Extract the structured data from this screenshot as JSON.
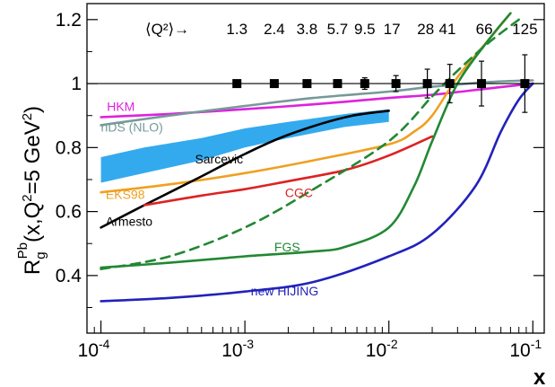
{
  "chart_data": {
    "type": "line",
    "title": "",
    "xlabel": "x",
    "ylabel_main": "R",
    "ylabel_sup": "Pb",
    "ylabel_sub": "g",
    "ylabel_rest": "(x,Q",
    "ylabel_q2sup": "2",
    "ylabel_tail": "=5 GeV",
    "ylabel_gevsup": "2",
    "ylabel_close": ")",
    "x_scale": "log",
    "xlim": [
      8e-05,
      0.12
    ],
    "ylim": [
      0.22,
      1.25
    ],
    "x_ticks": [
      {
        "value": 0.0001,
        "base": "10",
        "exp": "-4"
      },
      {
        "value": 0.001,
        "base": "10",
        "exp": "-3"
      },
      {
        "value": 0.01,
        "base": "10",
        "exp": "-2"
      },
      {
        "value": 0.1,
        "base": "10",
        "exp": "-1"
      }
    ],
    "y_ticks": [
      {
        "value": 0.4,
        "label": "0.4"
      },
      {
        "value": 0.6,
        "label": "0.6"
      },
      {
        "value": 0.8,
        "label": "0.8"
      },
      {
        "value": 1.0,
        "label": "1"
      },
      {
        "value": 1.2,
        "label": "1.2"
      }
    ],
    "reference_line": 1.0,
    "q2_header": {
      "label": "⟨Q²⟩→",
      "values": [
        {
          "x": 0.00088,
          "label": "1.3"
        },
        {
          "x": 0.0016,
          "label": "2.4"
        },
        {
          "x": 0.0027,
          "label": "3.8"
        },
        {
          "x": 0.0044,
          "label": "5.7"
        },
        {
          "x": 0.0068,
          "label": "9.5"
        },
        {
          "x": 0.0105,
          "label": "17"
        },
        {
          "x": 0.018,
          "label": "28"
        },
        {
          "x": 0.0255,
          "label": "41"
        },
        {
          "x": 0.046,
          "label": "66"
        },
        {
          "x": 0.088,
          "label": "125"
        }
      ]
    },
    "data_points": [
      {
        "x": 0.00088,
        "y": 1.0,
        "err": 0.0
      },
      {
        "x": 0.0016,
        "y": 1.0,
        "err": 0.0
      },
      {
        "x": 0.0027,
        "y": 1.0,
        "err": 0.0
      },
      {
        "x": 0.0044,
        "y": 1.0,
        "err": 0.012
      },
      {
        "x": 0.0068,
        "y": 1.0,
        "err": 0.018
      },
      {
        "x": 0.0112,
        "y": 1.0,
        "err": 0.025
      },
      {
        "x": 0.0185,
        "y": 1.0,
        "err": 0.045
      },
      {
        "x": 0.0265,
        "y": 1.0,
        "err": 0.06
      },
      {
        "x": 0.044,
        "y": 1.0,
        "err": 0.07
      },
      {
        "x": 0.088,
        "y": 1.0,
        "err": 0.09
      }
    ],
    "band": {
      "name": "Sarcevic",
      "color": "#33aaee",
      "x": [
        0.0001,
        0.0002,
        0.0005,
        0.001,
        0.002,
        0.005,
        0.01
      ],
      "upper": [
        0.77,
        0.8,
        0.83,
        0.86,
        0.88,
        0.905,
        0.92
      ],
      "lower": [
        0.69,
        0.72,
        0.76,
        0.8,
        0.83,
        0.865,
        0.88
      ]
    },
    "series": [
      {
        "name": "HKM",
        "color": "#dd22dd",
        "dash": false,
        "x": [
          0.0001,
          0.0003,
          0.001,
          0.003,
          0.01,
          0.02,
          0.05,
          0.1
        ],
        "y": [
          0.895,
          0.905,
          0.92,
          0.935,
          0.955,
          0.965,
          0.985,
          1.0
        ]
      },
      {
        "name": "nDS (NLO)",
        "color": "#779999",
        "dash": false,
        "x": [
          0.0001,
          0.0003,
          0.001,
          0.003,
          0.01,
          0.02,
          0.05,
          0.1
        ],
        "y": [
          0.87,
          0.9,
          0.93,
          0.955,
          0.975,
          0.99,
          1.005,
          1.01
        ]
      },
      {
        "name": "EKS98",
        "color": "#f0a020",
        "dash": false,
        "x": [
          0.0001,
          0.0003,
          0.001,
          0.003,
          0.01,
          0.015,
          0.02,
          0.03,
          0.05,
          0.07
        ],
        "y": [
          0.66,
          0.685,
          0.72,
          0.76,
          0.81,
          0.85,
          0.9,
          1.02,
          1.14,
          1.22
        ]
      },
      {
        "name": "Armesto",
        "color": "#000000",
        "dash": false,
        "x": [
          0.0001,
          0.0002,
          0.0005,
          0.001,
          0.002,
          0.005,
          0.01
        ],
        "y": [
          0.55,
          0.62,
          0.71,
          0.78,
          0.84,
          0.895,
          0.915
        ]
      },
      {
        "name": "CGC",
        "color": "#dd2222",
        "dash": false,
        "x": [
          0.0002,
          0.0005,
          0.001,
          0.002,
          0.005,
          0.01,
          0.02
        ],
        "y": [
          0.62,
          0.65,
          0.67,
          0.695,
          0.73,
          0.775,
          0.835
        ]
      },
      {
        "name": "FGS",
        "color": "#228833",
        "dash": false,
        "x": [
          0.0001,
          0.0003,
          0.001,
          0.003,
          0.005,
          0.01,
          0.015,
          0.02,
          0.03,
          0.05,
          0.07
        ],
        "y": [
          0.425,
          0.44,
          0.46,
          0.475,
          0.49,
          0.55,
          0.68,
          0.82,
          1.0,
          1.14,
          1.22
        ]
      },
      {
        "name": "",
        "color": "#228833",
        "dash": true,
        "x": [
          0.0001,
          0.0003,
          0.001,
          0.003,
          0.01,
          0.02,
          0.03,
          0.05,
          0.08
        ],
        "y": [
          0.42,
          0.46,
          0.55,
          0.67,
          0.82,
          0.96,
          1.04,
          1.13,
          1.2
        ]
      },
      {
        "name": "new HIJING",
        "color": "#2222bb",
        "dash": false,
        "x": [
          0.0001,
          0.0003,
          0.001,
          0.003,
          0.01,
          0.02,
          0.04,
          0.06,
          0.08,
          0.1
        ],
        "y": [
          0.32,
          0.33,
          0.35,
          0.38,
          0.46,
          0.53,
          0.68,
          0.85,
          0.95,
          1.0
        ]
      }
    ],
    "curve_labels": [
      {
        "text": "HKM",
        "color": "#dd22dd",
        "x": 0.00011,
        "y": 0.915
      },
      {
        "text": "nDS (NLO)",
        "color": "#779999",
        "x": 0.0001,
        "y": 0.85
      },
      {
        "text": "Sarcevic",
        "color": "#000000",
        "x": 0.00045,
        "y": 0.75
      },
      {
        "text": "EKS98",
        "color": "#f0a020",
        "x": 0.000108,
        "y": 0.64
      },
      {
        "text": "Armesto",
        "color": "#000000",
        "x": 0.000108,
        "y": 0.555
      },
      {
        "text": "CGC",
        "color": "#dd2222",
        "x": 0.0019,
        "y": 0.645
      },
      {
        "text": "FGS",
        "color": "#228833",
        "x": 0.0016,
        "y": 0.475
      },
      {
        "text": "new HIJING",
        "color": "#2222bb",
        "x": 0.0011,
        "y": 0.338
      }
    ]
  }
}
